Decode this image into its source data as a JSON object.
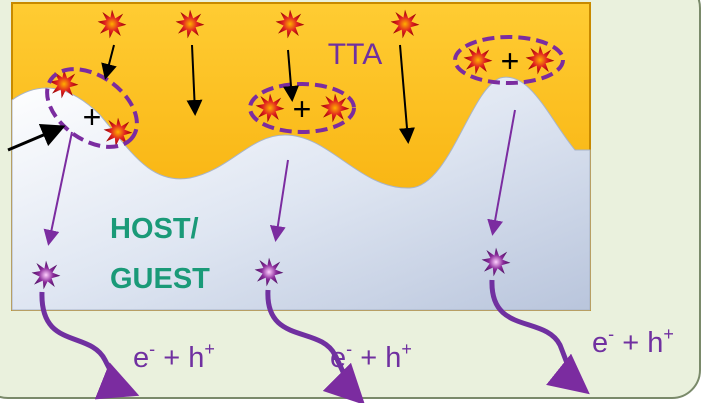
{
  "region_label": "TTA",
  "host_label": {
    "line1": "HOST/",
    "line2": "GUEST"
  },
  "pair_signs": [
    "+",
    "+",
    "+"
  ],
  "carrier_labels": [
    {
      "e": "e",
      "e_sup": "-",
      "mid": " + h",
      "h_sup": "+"
    },
    {
      "e": "e",
      "e_sup": "-",
      "mid": " + h",
      "h_sup": "+"
    },
    {
      "e": "e",
      "e_sup": "-",
      "mid": " + h",
      "h_sup": "+"
    }
  ]
}
